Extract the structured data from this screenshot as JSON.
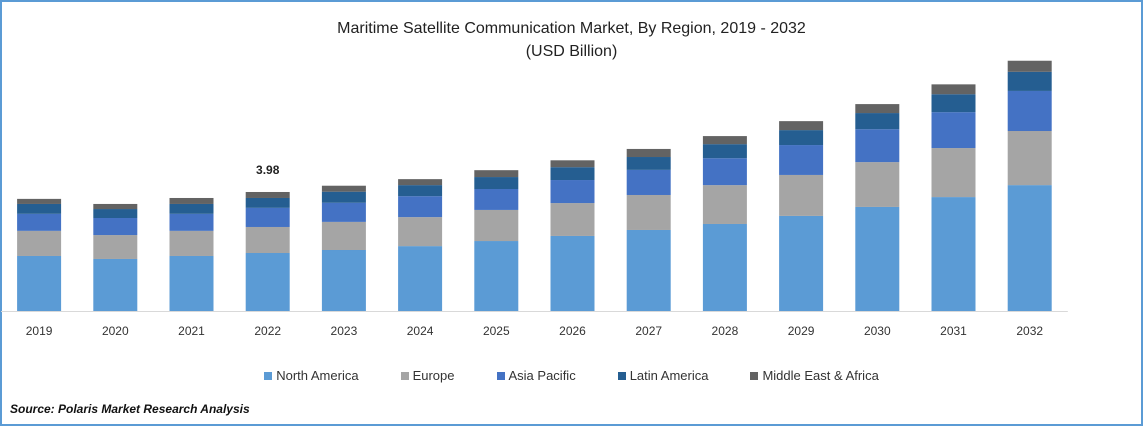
{
  "chart_data": {
    "type": "bar",
    "stacked": true,
    "title": "Maritime Satellite Communication Market, By Region, 2019 - 2032",
    "subtitle": "(USD Billion)",
    "categories": [
      "2019",
      "2020",
      "2021",
      "2022",
      "2023",
      "2024",
      "2025",
      "2026",
      "2027",
      "2028",
      "2029",
      "2030",
      "2031",
      "2032"
    ],
    "series": [
      {
        "name": "North America",
        "color": "#5b9bd5",
        "values": [
          1.84,
          1.74,
          1.84,
          1.94,
          2.04,
          2.17,
          2.34,
          2.51,
          2.71,
          2.91,
          3.18,
          3.48,
          3.81,
          4.21
        ]
      },
      {
        "name": "Europe",
        "color": "#a5a5a5",
        "values": [
          0.84,
          0.8,
          0.84,
          0.87,
          0.94,
          0.97,
          1.04,
          1.1,
          1.17,
          1.3,
          1.37,
          1.5,
          1.64,
          1.81
        ]
      },
      {
        "name": "Asia Pacific",
        "color": "#4472c4",
        "values": [
          0.57,
          0.57,
          0.57,
          0.64,
          0.64,
          0.7,
          0.7,
          0.77,
          0.84,
          0.9,
          1.0,
          1.1,
          1.2,
          1.34
        ]
      },
      {
        "name": "Latin America",
        "color": "#255e91",
        "values": [
          0.33,
          0.3,
          0.33,
          0.33,
          0.37,
          0.37,
          0.4,
          0.43,
          0.43,
          0.47,
          0.5,
          0.54,
          0.6,
          0.64
        ]
      },
      {
        "name": "Middle East & Africa",
        "color": "#636363",
        "values": [
          0.17,
          0.17,
          0.2,
          0.2,
          0.2,
          0.2,
          0.23,
          0.23,
          0.27,
          0.27,
          0.3,
          0.3,
          0.33,
          0.37
        ]
      }
    ],
    "annotations": [
      {
        "category": "2022",
        "text": "3.98"
      }
    ],
    "ylim": [
      0,
      8.37
    ],
    "y_axis_visible": false,
    "grid": false,
    "legend_placement": "bottom",
    "xlabel": "",
    "ylabel": ""
  },
  "source": "Source: Polaris  Market Research Analysis",
  "border_color": "#5b9bd5"
}
